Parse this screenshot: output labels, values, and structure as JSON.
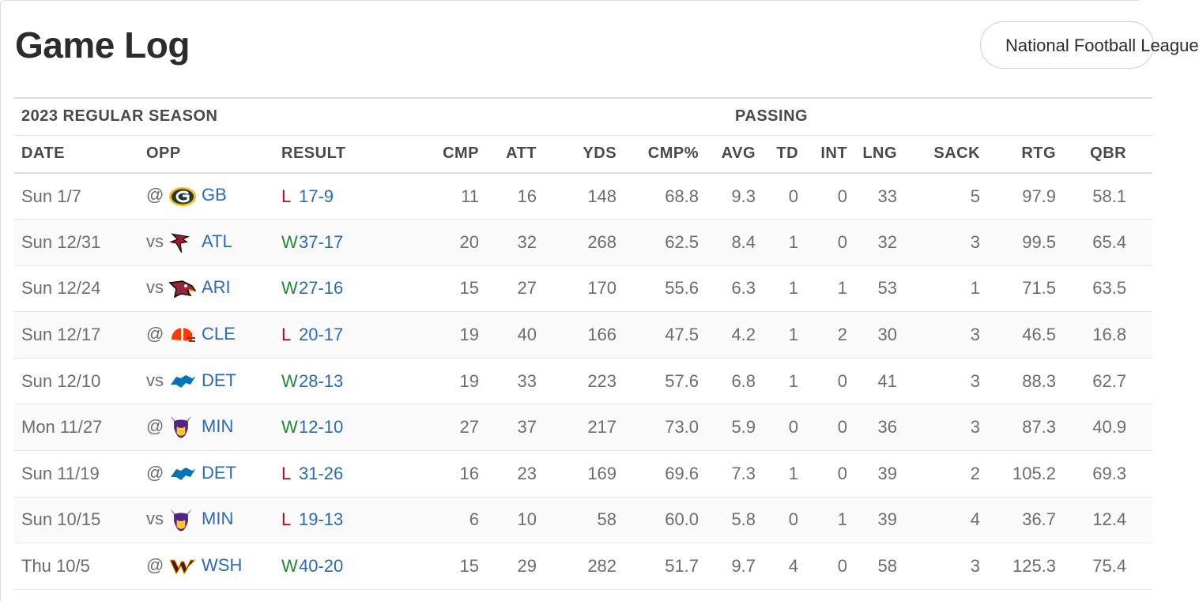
{
  "page": {
    "title": "Game Log",
    "league_select": "National Football League"
  },
  "table": {
    "season_label": "2023 REGULAR SEASON",
    "group_label": "PASSING",
    "columns": [
      "DATE",
      "OPP",
      "RESULT",
      "CMP",
      "ATT",
      "YDS",
      "CMP%",
      "AVG",
      "TD",
      "INT",
      "LNG",
      "SACK",
      "RTG",
      "QBR"
    ],
    "rows": [
      {
        "date": "Sun 1/7",
        "ha": "@",
        "team": "GB",
        "logo": "packers-logo",
        "wl": "L",
        "score": "17-9",
        "cmp": "11",
        "att": "16",
        "yds": "148",
        "cmp_pct": "68.8",
        "avg": "9.3",
        "td": "0",
        "int": "0",
        "lng": "33",
        "sack": "5",
        "rtg": "97.9",
        "qbr": "58.1"
      },
      {
        "date": "Sun 12/31",
        "ha": "vs",
        "team": "ATL",
        "logo": "falcons-logo",
        "wl": "W",
        "score": "37-17",
        "cmp": "20",
        "att": "32",
        "yds": "268",
        "cmp_pct": "62.5",
        "avg": "8.4",
        "td": "1",
        "int": "0",
        "lng": "32",
        "sack": "3",
        "rtg": "99.5",
        "qbr": "65.4"
      },
      {
        "date": "Sun 12/24",
        "ha": "vs",
        "team": "ARI",
        "logo": "cardinals-logo",
        "wl": "W",
        "score": "27-16",
        "cmp": "15",
        "att": "27",
        "yds": "170",
        "cmp_pct": "55.6",
        "avg": "6.3",
        "td": "1",
        "int": "1",
        "lng": "53",
        "sack": "1",
        "rtg": "71.5",
        "qbr": "63.5"
      },
      {
        "date": "Sun 12/17",
        "ha": "@",
        "team": "CLE",
        "logo": "browns-logo",
        "wl": "L",
        "score": "20-17",
        "cmp": "19",
        "att": "40",
        "yds": "166",
        "cmp_pct": "47.5",
        "avg": "4.2",
        "td": "1",
        "int": "2",
        "lng": "30",
        "sack": "3",
        "rtg": "46.5",
        "qbr": "16.8"
      },
      {
        "date": "Sun 12/10",
        "ha": "vs",
        "team": "DET",
        "logo": "lions-logo",
        "wl": "W",
        "score": "28-13",
        "cmp": "19",
        "att": "33",
        "yds": "223",
        "cmp_pct": "57.6",
        "avg": "6.8",
        "td": "1",
        "int": "0",
        "lng": "41",
        "sack": "3",
        "rtg": "88.3",
        "qbr": "62.7"
      },
      {
        "date": "Mon 11/27",
        "ha": "@",
        "team": "MIN",
        "logo": "vikings-logo",
        "wl": "W",
        "score": "12-10",
        "cmp": "27",
        "att": "37",
        "yds": "217",
        "cmp_pct": "73.0",
        "avg": "5.9",
        "td": "0",
        "int": "0",
        "lng": "36",
        "sack": "3",
        "rtg": "87.3",
        "qbr": "40.9"
      },
      {
        "date": "Sun 11/19",
        "ha": "@",
        "team": "DET",
        "logo": "lions-logo",
        "wl": "L",
        "score": "31-26",
        "cmp": "16",
        "att": "23",
        "yds": "169",
        "cmp_pct": "69.6",
        "avg": "7.3",
        "td": "1",
        "int": "0",
        "lng": "39",
        "sack": "2",
        "rtg": "105.2",
        "qbr": "69.3"
      },
      {
        "date": "Sun 10/15",
        "ha": "vs",
        "team": "MIN",
        "logo": "vikings-logo",
        "wl": "L",
        "score": "19-13",
        "cmp": "6",
        "att": "10",
        "yds": "58",
        "cmp_pct": "60.0",
        "avg": "5.8",
        "td": "0",
        "int": "1",
        "lng": "39",
        "sack": "4",
        "rtg": "36.7",
        "qbr": "12.4"
      },
      {
        "date": "Thu 10/5",
        "ha": "@",
        "team": "WSH",
        "logo": "commanders-logo",
        "wl": "W",
        "score": "40-20",
        "cmp": "15",
        "att": "29",
        "yds": "282",
        "cmp_pct": "51.7",
        "avg": "9.7",
        "td": "4",
        "int": "0",
        "lng": "58",
        "sack": "3",
        "rtg": "125.3",
        "qbr": "75.4"
      }
    ]
  },
  "colors": {
    "win": "#1f8a36",
    "loss": "#d0021b",
    "link": "#2b6bb5"
  }
}
